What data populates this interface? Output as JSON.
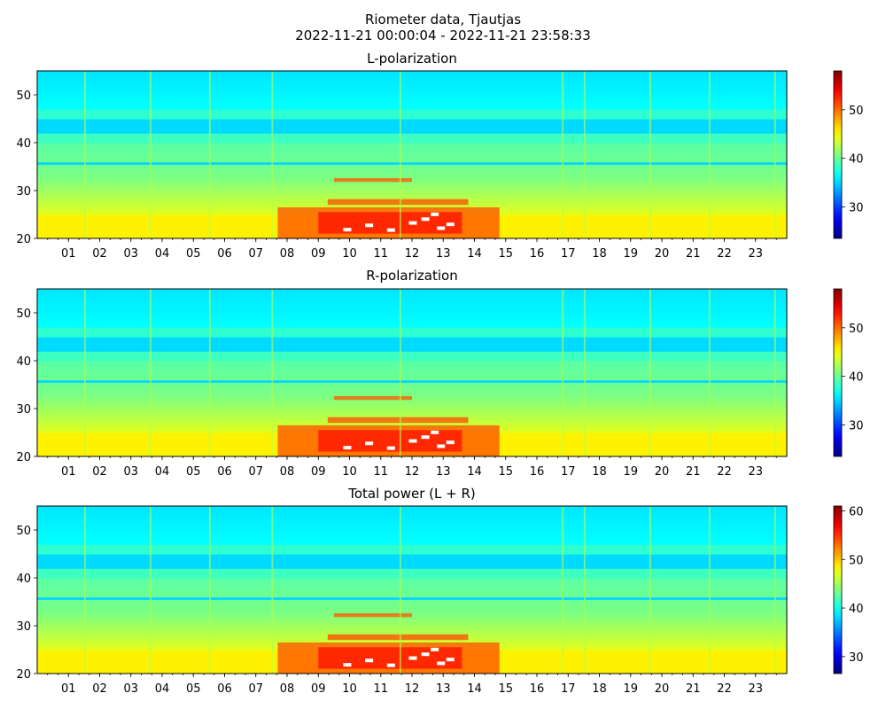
{
  "title_line1": "Riometer data, Tjautjas",
  "title_line2": "2022-11-21 00:00:04 - 2022-11-21 23:58:33",
  "colormap": "jet",
  "chart_data": [
    {
      "type": "heatmap",
      "title": "L-polarization",
      "x_hours": [
        0,
        24
      ],
      "x_tick_labels": [
        "01",
        "02",
        "03",
        "04",
        "05",
        "06",
        "07",
        "08",
        "09",
        "10",
        "11",
        "12",
        "13",
        "14",
        "15",
        "16",
        "17",
        "18",
        "19",
        "20",
        "21",
        "22",
        "23"
      ],
      "ylim": [
        20,
        55
      ],
      "y_ticks": [
        20,
        30,
        40,
        50
      ],
      "colorbar_range": [
        23.5,
        58
      ],
      "colorbar_ticks": [
        30,
        40,
        50
      ]
    },
    {
      "type": "heatmap",
      "title": "R-polarization",
      "x_hours": [
        0,
        24
      ],
      "x_tick_labels": [
        "01",
        "02",
        "03",
        "04",
        "05",
        "06",
        "07",
        "08",
        "09",
        "10",
        "11",
        "12",
        "13",
        "14",
        "15",
        "16",
        "17",
        "18",
        "19",
        "20",
        "21",
        "22",
        "23"
      ],
      "ylim": [
        20,
        55
      ],
      "y_ticks": [
        20,
        30,
        40,
        50
      ],
      "colorbar_range": [
        23.5,
        58
      ],
      "colorbar_ticks": [
        30,
        40,
        50
      ]
    },
    {
      "type": "heatmap",
      "title": "Total power (L + R)",
      "x_hours": [
        0,
        24
      ],
      "x_tick_labels": [
        "01",
        "02",
        "03",
        "04",
        "05",
        "06",
        "07",
        "08",
        "09",
        "10",
        "11",
        "12",
        "13",
        "14",
        "15",
        "16",
        "17",
        "18",
        "19",
        "20",
        "21",
        "22",
        "23"
      ],
      "ylim": [
        20,
        55
      ],
      "y_ticks": [
        20,
        30,
        40,
        50
      ],
      "colorbar_range": [
        26.5,
        61
      ],
      "colorbar_ticks": [
        30,
        40,
        50,
        60
      ]
    }
  ]
}
